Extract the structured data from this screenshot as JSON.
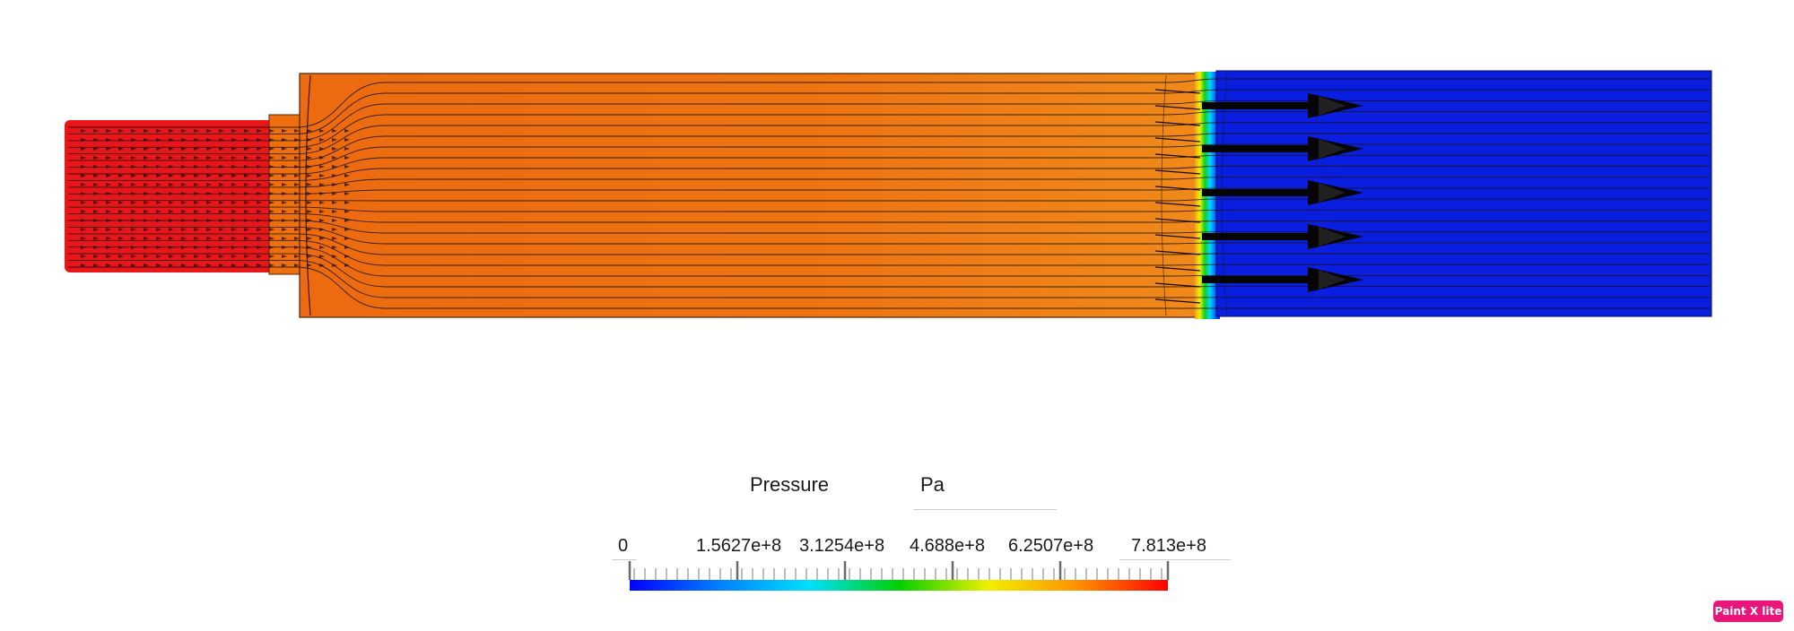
{
  "legend": {
    "title": "Pressure",
    "unit": "Pa",
    "ticks": [
      "0",
      "1.5627e+8",
      "3.1254e+8",
      "4.688e+8",
      "6.2507e+8",
      "7.813e+8"
    ],
    "range": [
      0,
      781300000
    ],
    "colormap": [
      "#0000ff",
      "#0080ff",
      "#00e0ff",
      "#00d000",
      "#f0f000",
      "#ff9000",
      "#ff0000"
    ]
  },
  "field": {
    "inlet_color": "#e8161b",
    "chamber_color": "#ee6f0e",
    "outlet_color": "#0a1ee0"
  },
  "watermark": {
    "label": "Paint X lite"
  }
}
